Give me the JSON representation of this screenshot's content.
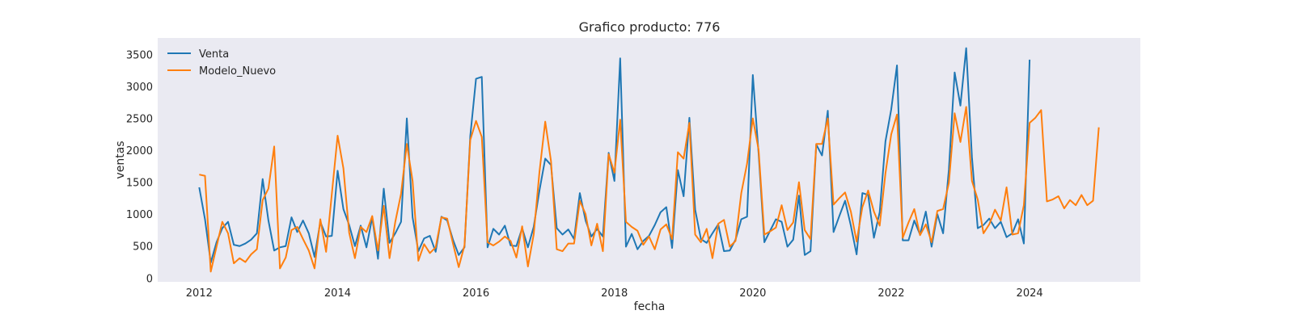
{
  "chart_data": {
    "type": "line",
    "title": "Grafico producto: 776",
    "xlabel": "fecha",
    "ylabel": "ventas",
    "xlim": [
      2011.4,
      2025.6
    ],
    "ylim": [
      -60,
      3760
    ],
    "xticks": [
      2012,
      2014,
      2016,
      2018,
      2020,
      2022,
      2024
    ],
    "yticks": [
      0,
      500,
      1000,
      1500,
      2000,
      2500,
      3000,
      3500
    ],
    "grid": false,
    "legend_position": "top-left",
    "colors": {
      "plot_background": "#eaeaf2",
      "venta": "#1f77b4",
      "modelo": "#ff7f0e"
    },
    "series": [
      {
        "name": "Venta",
        "x_start": 2012.0,
        "step": 0.0833333,
        "values": [
          1420,
          920,
          240,
          560,
          780,
          880,
          520,
          500,
          540,
          600,
          700,
          1550,
          900,
          430,
          480,
          500,
          950,
          720,
          900,
          700,
          330,
          880,
          650,
          660,
          1680,
          1080,
          830,
          500,
          820,
          480,
          950,
          300,
          1400,
          550,
          700,
          880,
          2500,
          950,
          420,
          620,
          660,
          410,
          960,
          900,
          600,
          360,
          480,
          2220,
          3120,
          3150,
          480,
          770,
          680,
          820,
          510,
          500,
          780,
          480,
          800,
          1370,
          1870,
          1770,
          780,
          680,
          760,
          610,
          1330,
          900,
          650,
          770,
          650,
          1960,
          1520,
          3440,
          490,
          690,
          450,
          580,
          660,
          830,
          1030,
          1110,
          470,
          1690,
          1280,
          2510,
          1070,
          610,
          550,
          700,
          840,
          420,
          430,
          600,
          920,
          960,
          3180,
          1950,
          560,
          740,
          920,
          880,
          490,
          600,
          1290,
          360,
          420,
          2090,
          1920,
          2620,
          720,
          970,
          1210,
          820,
          370,
          1330,
          1300,
          630,
          1030,
          2140,
          2640,
          3330,
          590,
          590,
          900,
          680,
          1040,
          490,
          1000,
          700,
          1700,
          3220,
          2700,
          3600,
          1890,
          780,
          830,
          930,
          780,
          880,
          640,
          700,
          920,
          540,
          3420
        ]
      },
      {
        "name": "Modelo_Nuevo",
        "x_start": 2012.0,
        "step": 0.0833333,
        "values": [
          1620,
          1600,
          100,
          490,
          880,
          700,
          230,
          310,
          250,
          370,
          450,
          1220,
          1400,
          2060,
          150,
          320,
          750,
          800,
          610,
          430,
          150,
          920,
          410,
          1320,
          2230,
          1720,
          710,
          310,
          800,
          720,
          970,
          430,
          1130,
          310,
          880,
          1320,
          2100,
          1520,
          270,
          530,
          390,
          480,
          950,
          930,
          540,
          170,
          510,
          2160,
          2460,
          2210,
          560,
          510,
          570,
          650,
          580,
          320,
          810,
          180,
          680,
          1660,
          2450,
          1830,
          450,
          420,
          540,
          540,
          1210,
          1000,
          510,
          850,
          420,
          1940,
          1650,
          2480,
          880,
          800,
          740,
          520,
          650,
          450,
          760,
          840,
          610,
          1970,
          1870,
          2430,
          680,
          560,
          770,
          310,
          850,
          910,
          490,
          580,
          1330,
          1790,
          2500,
          2010,
          680,
          730,
          790,
          1140,
          750,
          870,
          1500,
          750,
          610,
          2100,
          2100,
          2500,
          1150,
          1250,
          1340,
          1040,
          570,
          1110,
          1370,
          1040,
          820,
          1640,
          2250,
          2560,
          630,
          870,
          1080,
          670,
          840,
          560,
          1050,
          1080,
          1490,
          2580,
          2130,
          2680,
          1520,
          1230,
          700,
          840,
          1070,
          900,
          1420,
          680,
          700,
          1140,
          2430,
          2510,
          2630,
          1200,
          1230,
          1280,
          1090,
          1220,
          1140,
          1300,
          1140,
          1210,
          2360
        ]
      }
    ]
  }
}
